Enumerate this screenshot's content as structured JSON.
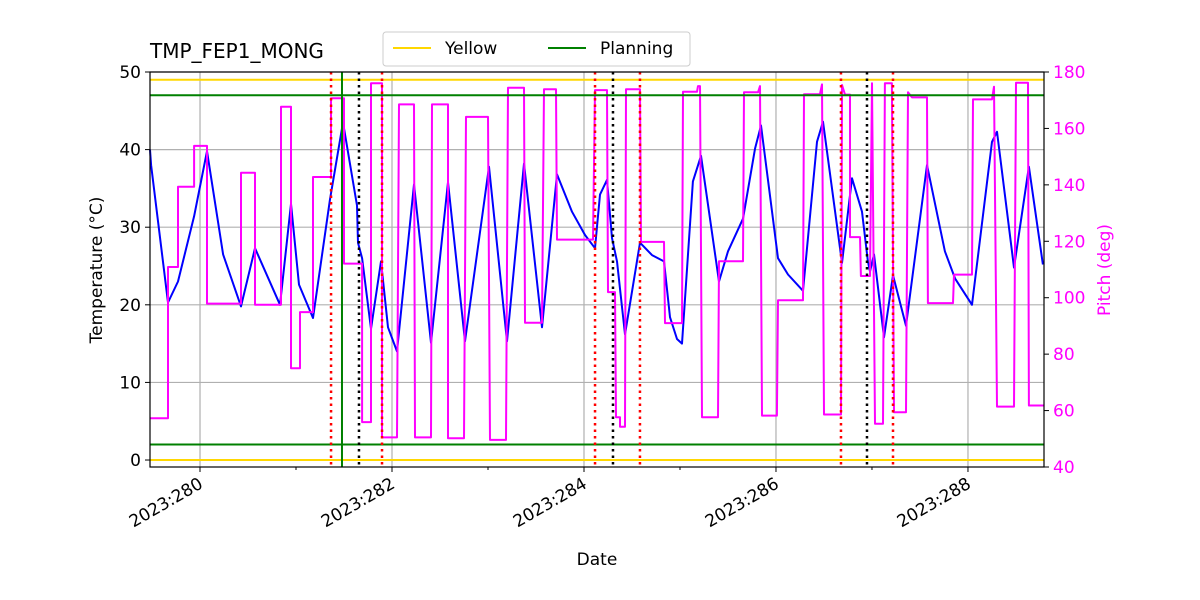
{
  "chart_data": {
    "type": "line",
    "title": "TMP_FEP1_MONG",
    "xlabel": "Date",
    "ylabel": "Temperature (°C)",
    "ylabel_right": "Pitch (deg)",
    "xlim": [
      279.479,
      288.792
    ],
    "ylim": [
      -0.9,
      50
    ],
    "ylim_right": [
      40,
      180
    ],
    "x_ticks": [
      280,
      282,
      284,
      286,
      288
    ],
    "x_tick_labels": [
      "2023:280",
      "2023:282",
      "2023:284",
      "2023:286",
      "2023:288"
    ],
    "x_minor_ticks": [
      281,
      283,
      285,
      287
    ],
    "y_ticks": [
      0,
      10,
      20,
      30,
      40,
      50
    ],
    "y_ticks_right": [
      40,
      60,
      80,
      100,
      120,
      140,
      160,
      180
    ],
    "grid": true,
    "legend": {
      "placement": "top-center",
      "entries": [
        {
          "label": "Yellow",
          "color": "#FFD700"
        },
        {
          "label": "Planning",
          "color": "#008000"
        }
      ]
    },
    "colors": {
      "temperature": "#0000FF",
      "pitch": "#FF00FF",
      "yellow": "#FFD700",
      "planning": "#008000",
      "red_marker": "#FF0000",
      "black_marker": "#000000",
      "green_marker": "#008000"
    },
    "hlines": [
      {
        "kind": "yellow",
        "y": 49
      },
      {
        "kind": "yellow",
        "y": 0
      },
      {
        "kind": "planning",
        "y": 47
      },
      {
        "kind": "planning",
        "y": 2
      }
    ],
    "vlines_red_dotted": [
      281.365,
      281.896,
      284.115,
      284.583,
      286.677,
      287.219
    ],
    "vlines_black_dotted": [
      281.656,
      284.302,
      286.948
    ],
    "vline_green_solid": [
      281.479
    ],
    "series": [
      {
        "axis": "left",
        "color": "#0000FF",
        "points": [
          [
            279.479,
            40
          ],
          [
            279.49,
            38
          ],
          [
            279.667,
            20.3
          ],
          [
            279.771,
            23
          ],
          [
            279.938,
            31.4
          ],
          [
            280.073,
            39.8
          ],
          [
            280.24,
            26.5
          ],
          [
            280.427,
            19.8
          ],
          [
            280.573,
            27.3
          ],
          [
            280.833,
            20
          ],
          [
            280.948,
            33
          ],
          [
            281.031,
            22.6
          ],
          [
            281.177,
            18.3
          ],
          [
            281.354,
            33.6
          ],
          [
            281.49,
            43.5
          ],
          [
            281.635,
            32.8
          ],
          [
            281.646,
            28
          ],
          [
            281.688,
            26
          ],
          [
            281.781,
            16.9
          ],
          [
            281.885,
            25.6
          ],
          [
            281.958,
            17.1
          ],
          [
            282.052,
            14
          ],
          [
            282.229,
            35.5
          ],
          [
            282.406,
            15.1
          ],
          [
            282.583,
            35.8
          ],
          [
            282.76,
            15.3
          ],
          [
            283.01,
            37.8
          ],
          [
            283.198,
            15.3
          ],
          [
            283.375,
            38.2
          ],
          [
            283.563,
            17.1
          ],
          [
            283.719,
            36.8
          ],
          [
            283.875,
            32
          ],
          [
            284.01,
            29
          ],
          [
            284.115,
            27.3
          ],
          [
            284.167,
            34.2
          ],
          [
            284.24,
            36.1
          ],
          [
            284.292,
            28.6
          ],
          [
            284.344,
            25.6
          ],
          [
            284.427,
            16.2
          ],
          [
            284.583,
            28
          ],
          [
            284.708,
            26.4
          ],
          [
            284.833,
            25.6
          ],
          [
            284.896,
            18.4
          ],
          [
            284.969,
            15.6
          ],
          [
            285.021,
            15
          ],
          [
            285.135,
            35.9
          ],
          [
            285.219,
            39.2
          ],
          [
            285.292,
            32.9
          ],
          [
            285.406,
            23
          ],
          [
            285.5,
            26.9
          ],
          [
            285.656,
            31.1
          ],
          [
            285.781,
            40.1
          ],
          [
            285.844,
            43.1
          ],
          [
            286.021,
            26
          ],
          [
            286.125,
            23.9
          ],
          [
            286.281,
            21.8
          ],
          [
            286.427,
            41
          ],
          [
            286.49,
            43.6
          ],
          [
            286.688,
            25.4
          ],
          [
            286.792,
            36.3
          ],
          [
            286.896,
            32
          ],
          [
            286.958,
            25.6
          ],
          [
            286.979,
            24.3
          ],
          [
            287.021,
            26.5
          ],
          [
            287.125,
            15.8
          ],
          [
            287.219,
            23.8
          ],
          [
            287.354,
            17.3
          ],
          [
            287.573,
            38
          ],
          [
            287.76,
            26.9
          ],
          [
            287.865,
            23.4
          ],
          [
            288.042,
            20
          ],
          [
            288.25,
            41
          ],
          [
            288.302,
            42.3
          ],
          [
            288.479,
            24.8
          ],
          [
            288.635,
            37.8
          ],
          [
            288.781,
            25.2
          ]
        ]
      },
      {
        "axis": "right",
        "color": "#FF00FF",
        "points": [
          [
            279.479,
            57.3
          ],
          [
            279.667,
            57.3
          ],
          [
            279.667,
            110.9
          ],
          [
            279.771,
            110.9
          ],
          [
            279.771,
            139.3
          ],
          [
            279.938,
            139.3
          ],
          [
            279.938,
            153.8
          ],
          [
            280.073,
            153.8
          ],
          [
            280.073,
            97.9
          ],
          [
            280.427,
            97.9
          ],
          [
            280.427,
            144.3
          ],
          [
            280.573,
            144.3
          ],
          [
            280.573,
            97.5
          ],
          [
            280.844,
            97.5
          ],
          [
            280.844,
            167.7
          ],
          [
            280.948,
            167.7
          ],
          [
            280.948,
            75
          ],
          [
            281.042,
            75
          ],
          [
            281.042,
            94.9
          ],
          [
            281.177,
            94.9
          ],
          [
            281.177,
            142.8
          ],
          [
            281.365,
            142.8
          ],
          [
            281.365,
            170.7
          ],
          [
            281.5,
            170.7
          ],
          [
            281.5,
            112.1
          ],
          [
            281.688,
            112.1
          ],
          [
            281.688,
            55.9
          ],
          [
            281.781,
            55.9
          ],
          [
            281.781,
            176
          ],
          [
            281.896,
            176
          ],
          [
            281.896,
            50.5
          ],
          [
            282.052,
            50.5
          ],
          [
            282.073,
            168.5
          ],
          [
            282.229,
            168.5
          ],
          [
            282.24,
            50.5
          ],
          [
            282.406,
            50.5
          ],
          [
            282.417,
            168.5
          ],
          [
            282.583,
            168.5
          ],
          [
            282.583,
            50.2
          ],
          [
            282.75,
            50.2
          ],
          [
            282.771,
            164.1
          ],
          [
            283.0,
            164.1
          ],
          [
            283.021,
            49.6
          ],
          [
            283.188,
            49.6
          ],
          [
            283.208,
            174.4
          ],
          [
            283.375,
            174.4
          ],
          [
            283.385,
            91.1
          ],
          [
            283.563,
            91.1
          ],
          [
            283.583,
            173.9
          ],
          [
            283.708,
            173.9
          ],
          [
            283.719,
            120.6
          ],
          [
            284.094,
            120.6
          ],
          [
            284.115,
            173.6
          ],
          [
            284.24,
            173.6
          ],
          [
            284.25,
            102
          ],
          [
            284.323,
            102
          ],
          [
            284.333,
            57.6
          ],
          [
            284.375,
            57.6
          ],
          [
            284.375,
            54.3
          ],
          [
            284.427,
            54.3
          ],
          [
            284.438,
            173.9
          ],
          [
            284.583,
            173.9
          ],
          [
            284.594,
            119.8
          ],
          [
            284.833,
            119.8
          ],
          [
            284.844,
            91
          ],
          [
            285.021,
            91
          ],
          [
            285.031,
            173
          ],
          [
            285.177,
            173
          ],
          [
            285.188,
            175
          ],
          [
            285.208,
            175
          ],
          [
            285.229,
            57.6
          ],
          [
            285.396,
            57.6
          ],
          [
            285.406,
            112.9
          ],
          [
            285.656,
            112.9
          ],
          [
            285.667,
            172.8
          ],
          [
            285.813,
            172.8
          ],
          [
            285.833,
            175
          ],
          [
            285.854,
            58.2
          ],
          [
            286.01,
            58.2
          ],
          [
            286.021,
            99.1
          ],
          [
            286.281,
            99.1
          ],
          [
            286.292,
            172.1
          ],
          [
            286.458,
            172.1
          ],
          [
            286.479,
            175.6
          ],
          [
            286.5,
            58.6
          ],
          [
            286.677,
            58.6
          ],
          [
            286.688,
            175.4
          ],
          [
            286.719,
            172
          ],
          [
            286.771,
            172
          ],
          [
            286.771,
            121.5
          ],
          [
            286.875,
            121.5
          ],
          [
            286.885,
            107.7
          ],
          [
            286.979,
            107.7
          ],
          [
            287.0,
            176
          ],
          [
            287.031,
            55.3
          ],
          [
            287.115,
            55.3
          ],
          [
            287.135,
            176
          ],
          [
            287.208,
            176
          ],
          [
            287.229,
            59.4
          ],
          [
            287.354,
            59.4
          ],
          [
            287.375,
            172.8
          ],
          [
            287.417,
            171
          ],
          [
            287.573,
            171
          ],
          [
            287.583,
            98.1
          ],
          [
            287.844,
            98.1
          ],
          [
            287.854,
            108.2
          ],
          [
            288.042,
            108.2
          ],
          [
            288.052,
            170.3
          ],
          [
            288.25,
            170.3
          ],
          [
            288.271,
            174.8
          ],
          [
            288.302,
            61.4
          ],
          [
            288.479,
            61.4
          ],
          [
            288.5,
            176.2
          ],
          [
            288.625,
            176.2
          ],
          [
            288.635,
            61.8
          ],
          [
            288.792,
            61.8
          ]
        ]
      }
    ]
  }
}
